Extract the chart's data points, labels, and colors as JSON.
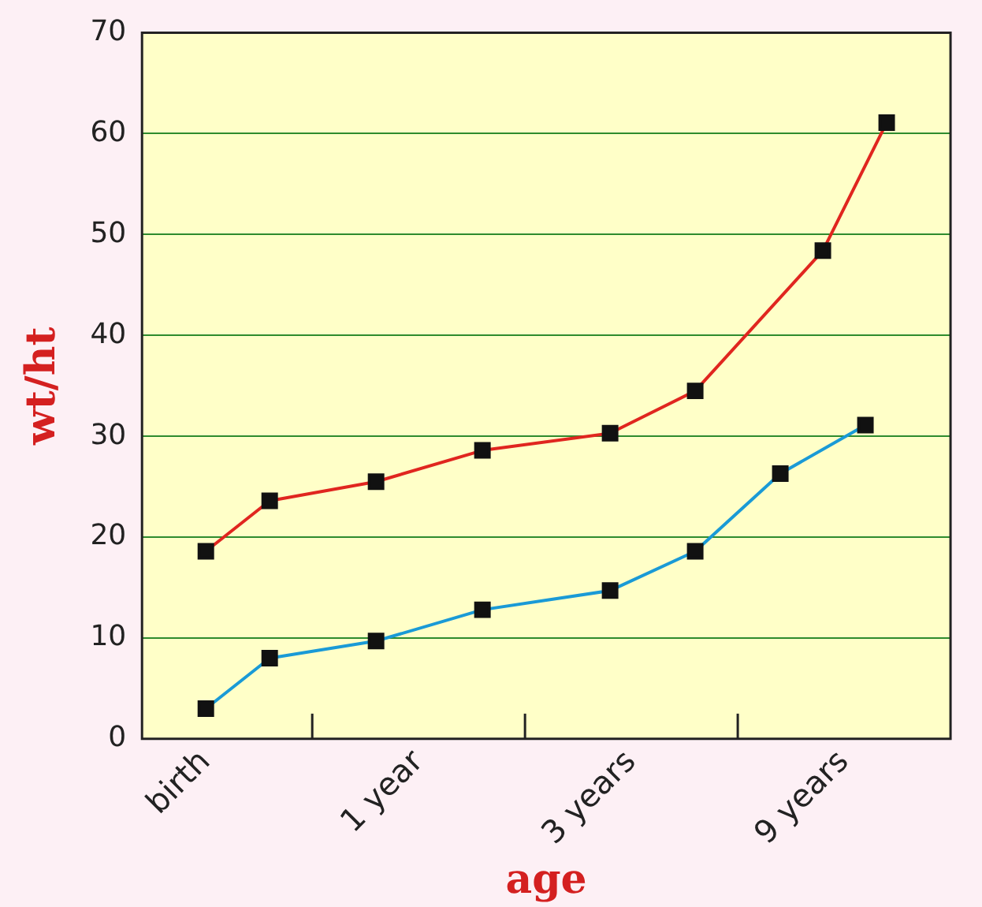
{
  "chart_data": {
    "type": "line",
    "xlabel": "age",
    "ylabel": "wt/ht",
    "categories": [
      null,
      null,
      null,
      "birth",
      null,
      null,
      null,
      null,
      null,
      null,
      null,
      null,
      null,
      "1 year",
      null,
      null,
      null,
      null,
      null,
      null,
      null,
      null,
      null,
      "3 years",
      null,
      null,
      null,
      null,
      null,
      null,
      null,
      null,
      null,
      "9 years",
      null,
      null,
      null,
      null,
      null
    ],
    "ylim": [
      0,
      70
    ],
    "yticks": [
      0,
      10,
      20,
      30,
      40,
      50,
      60,
      70
    ],
    "grid": "y",
    "legend": false,
    "marker": "square",
    "line_style": "solid",
    "series": [
      {
        "color": "#e0261f",
        "values": [
          null,
          null,
          null,
          18.6,
          null,
          null,
          23.6,
          null,
          null,
          null,
          null,
          25.5,
          null,
          null,
          null,
          null,
          28.6,
          null,
          null,
          null,
          null,
          null,
          30.3,
          null,
          null,
          null,
          34.5,
          null,
          null,
          null,
          null,
          null,
          48.4,
          null,
          null,
          61.1,
          null,
          null,
          null
        ]
      },
      {
        "color": "#1a9ad6",
        "values": [
          null,
          null,
          null,
          3.0,
          null,
          null,
          8.0,
          null,
          null,
          null,
          null,
          9.7,
          null,
          null,
          null,
          null,
          12.8,
          null,
          null,
          null,
          null,
          null,
          14.7,
          null,
          null,
          null,
          18.6,
          null,
          null,
          null,
          26.3,
          null,
          null,
          null,
          31.1,
          null,
          null,
          null,
          null
        ]
      }
    ]
  }
}
